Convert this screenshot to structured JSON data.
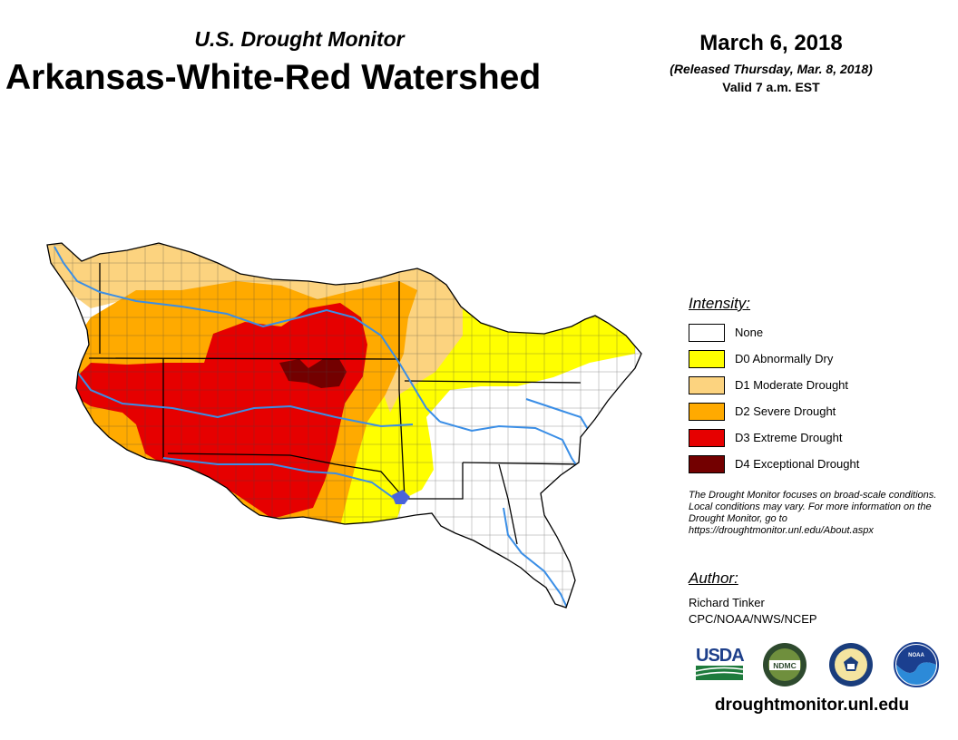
{
  "header": {
    "subtitle": "U.S. Drought Monitor",
    "title": "Arkansas-White-Red Watershed",
    "date": "March 6, 2018",
    "released": "(Released Thursday, Mar. 8, 2018)",
    "valid": "Valid 7 a.m. EST"
  },
  "legend": {
    "heading": "Intensity:",
    "items": [
      {
        "label": "None",
        "color": "#ffffff"
      },
      {
        "label": "D0 Abnormally Dry",
        "color": "#ffff00"
      },
      {
        "label": "D1 Moderate Drought",
        "color": "#fcd37f"
      },
      {
        "label": "D2 Severe Drought",
        "color": "#ffaa00"
      },
      {
        "label": "D3 Extreme Drought",
        "color": "#e60000"
      },
      {
        "label": "D4 Exceptional Drought",
        "color": "#730000"
      }
    ]
  },
  "note": "The Drought Monitor focuses on broad-scale conditions. Local conditions may vary. For more information on the Drought Monitor, go to https://droughtmonitor.unl.edu/About.aspx",
  "author": {
    "heading": "Author:",
    "name": "Richard Tinker",
    "org": "CPC/NOAA/NWS/NCEP"
  },
  "logos": {
    "usda": "USDA",
    "ndmc": "NDMC",
    "noaa": "NOAA"
  },
  "website": "droughtmonitor.unl.edu",
  "map": {
    "river_color": "#3a8ee6",
    "border_color": "#000000",
    "region_colors": {
      "none": "#ffffff",
      "d0": "#ffff00",
      "d1": "#fcd37f",
      "d2": "#ffaa00",
      "d3": "#e60000",
      "d4": "#730000"
    }
  }
}
